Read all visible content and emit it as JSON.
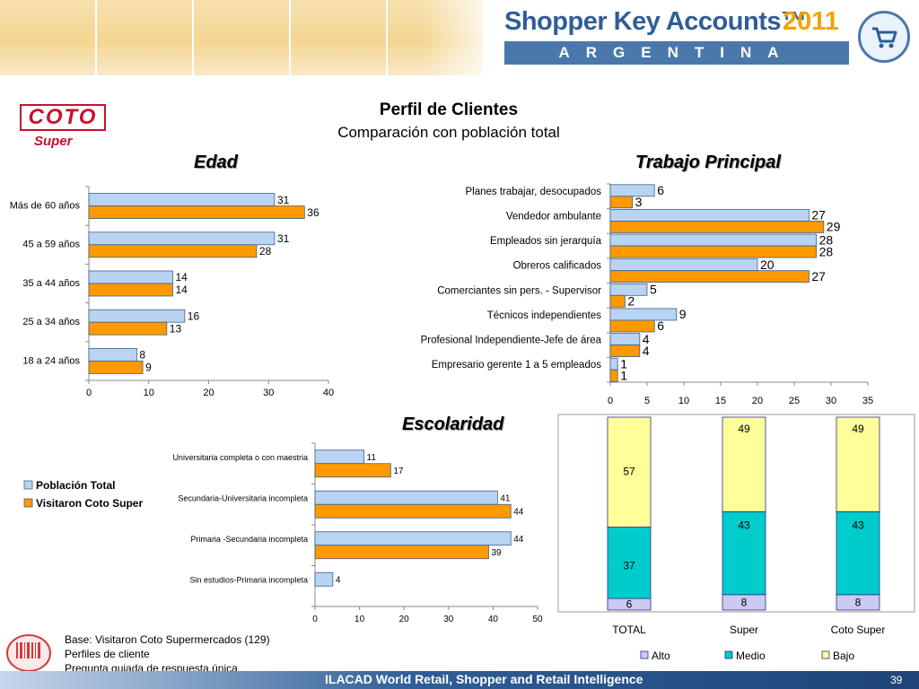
{
  "header": {
    "brand_title": "Shopper Key Accounts™",
    "brand_year": "2011",
    "brand_country": "ARGENTINA",
    "brand_icon": "shopping-cart-icon"
  },
  "retailer": {
    "logo_text": "COTO",
    "logo_sub": "Super"
  },
  "page": {
    "title": "Perfil de Clientes",
    "subtitle": "Comparación con población total"
  },
  "colors": {
    "poblacion": "#b8d4f2",
    "visitaron": "#ff9900",
    "alto": "#c9cbf5",
    "medio": "#00cccc",
    "bajo": "#ffff99",
    "border": "#3c5f8a"
  },
  "legend": {
    "items": [
      "Población Total",
      "Visitaron Coto Super"
    ]
  },
  "chart_data": [
    {
      "type": "bar",
      "orientation": "horizontal",
      "title": "Edad",
      "categories": [
        "Más de 60 años",
        "45 a 59 años",
        "35 a 44 años",
        "25 a 34 años",
        "18 a 24 años"
      ],
      "series": [
        {
          "name": "Población Total",
          "values": [
            31,
            31,
            14,
            16,
            8
          ]
        },
        {
          "name": "Visitaron Coto Super",
          "values": [
            36,
            28,
            14,
            13,
            9
          ]
        }
      ],
      "xlim": [
        0,
        40
      ],
      "xticks": [
        0,
        10,
        20,
        30,
        40
      ]
    },
    {
      "type": "bar",
      "orientation": "horizontal",
      "title": "Trabajo Principal",
      "categories": [
        "Planes trabajar, desocupados",
        "Vendedor ambulante",
        "Empleados sin jerarquía",
        "Obreros calificados",
        "Comerciantes sin pers. - Supervisor",
        "Técnicos independientes",
        "Profesional Independiente-Jefe de área",
        "Empresario gerente 1 a 5 empleados"
      ],
      "series": [
        {
          "name": "Población Total",
          "values": [
            6,
            27,
            28,
            20,
            5,
            9,
            4,
            1
          ]
        },
        {
          "name": "Visitaron Coto Super",
          "values": [
            3,
            29,
            28,
            27,
            2,
            6,
            4,
            1
          ]
        }
      ],
      "xlim": [
        0,
        35
      ],
      "xticks": [
        0,
        5,
        10,
        15,
        20,
        25,
        30,
        35
      ]
    },
    {
      "type": "bar",
      "orientation": "horizontal",
      "title": "Escolaridad",
      "categories": [
        "Universitaria completa o con maestria",
        "Secundaria-Universitaria incompleta",
        "Primaria -Secundaria incompleta",
        "Sin estudios-Primaria incompleta"
      ],
      "series": [
        {
          "name": "Población Total",
          "values": [
            11,
            41,
            44,
            4
          ]
        },
        {
          "name": "Visitaron Coto Super",
          "values": [
            17,
            44,
            39,
            null
          ]
        }
      ],
      "xlim": [
        0,
        50
      ],
      "xticks": [
        0,
        10,
        20,
        30,
        40,
        50
      ]
    },
    {
      "type": "bar",
      "stacked": true,
      "categories": [
        "TOTAL",
        "Super",
        "Coto Super"
      ],
      "series": [
        {
          "name": "Alto",
          "values": [
            6,
            8,
            8
          ]
        },
        {
          "name": "Medio",
          "values": [
            37,
            43,
            43
          ]
        },
        {
          "name": "Bajo",
          "values": [
            57,
            49,
            49
          ]
        }
      ],
      "ylim": [
        0,
        100
      ]
    }
  ],
  "footnote": {
    "line1": "Base: Visitaron Coto Supermercados (129)",
    "line2": "Perfiles de cliente",
    "line3": "Pregunta guiada de respuesta única"
  },
  "footer": {
    "text": "ILACAD World Retail, Shopper and Retail Intelligence",
    "page_number": "39"
  }
}
